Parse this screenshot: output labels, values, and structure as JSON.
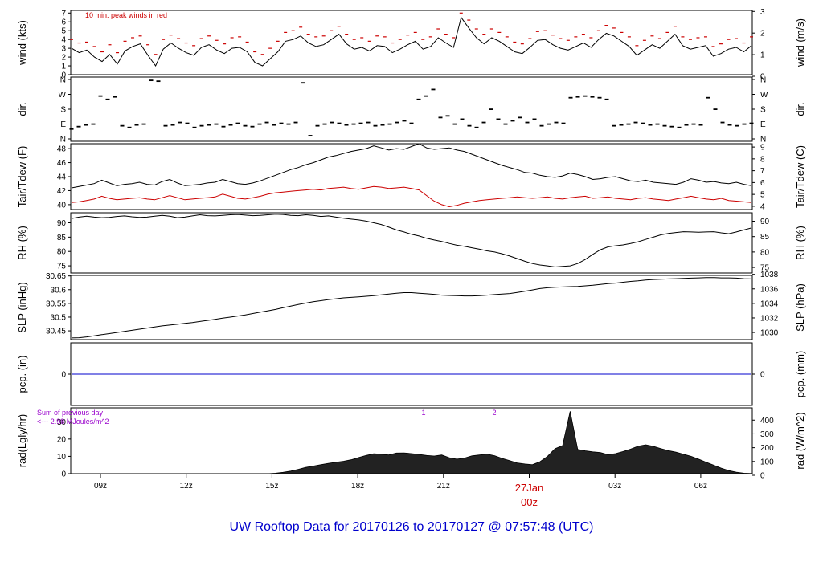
{
  "footer": {
    "title_prefix": "UW Rooftop Data for",
    "start": "20170126",
    "to_word": "to",
    "end": "20170127",
    "at_word": "@",
    "time": "07:57:48",
    "tz": "(UTC)"
  },
  "x_axis": {
    "ticks": [
      "09z",
      "12z",
      "15z",
      "18z",
      "21z",
      "27Jan",
      "03z",
      "06z"
    ],
    "date_marker": {
      "label": "27Jan",
      "sub": "00z",
      "color": "#cc0000"
    }
  },
  "chart_data": [
    {
      "type": "line",
      "title": "10 min. peak winds in red",
      "ylabel_left": "wind (kts)",
      "ylabel_right": "wind (m/s)",
      "left_ticks": [
        0,
        1,
        2,
        3,
        4,
        5,
        6,
        7
      ],
      "right_ticks": [
        0,
        1,
        2,
        3
      ],
      "ylim": [
        0,
        7.3
      ],
      "colors": {
        "series": "#000000",
        "peak": "#cc0000"
      },
      "series": [
        {
          "values": [
            3,
            2.5,
            2.8,
            2,
            1.5,
            2.3,
            1.2,
            2.7,
            3.2,
            3.5,
            2.2,
            1,
            2.9,
            3.6,
            3,
            2.5,
            2.2,
            3.1,
            3.4,
            2.8,
            2.4,
            3,
            3.1,
            2.6,
            1.4,
            1,
            1.8,
            2.6,
            3.8,
            4,
            4.4,
            3.6,
            3.2,
            3.4,
            4,
            4.6,
            3.5,
            2.9,
            3.1,
            2.7,
            3.3,
            3.2,
            2.5,
            2.9,
            3.4,
            3.8,
            2.9,
            3.2,
            4.2,
            3.6,
            3.1,
            6.5,
            5.3,
            4.2,
            3.5,
            4.2,
            3.8,
            3.2,
            2.6,
            2.4,
            3.1,
            3.9,
            4,
            3.4,
            3,
            2.8,
            3.2,
            3.6,
            3.1,
            4,
            4.7,
            4.4,
            3.8,
            3.2,
            2.2,
            2.8,
            3.4,
            3,
            3.8,
            4.6,
            3.3,
            2.9,
            3.1,
            3.3,
            2.1,
            2.4,
            2.9,
            3.1,
            2.6,
            3.3
          ]
        }
      ],
      "peak_values": [
        4,
        3.6,
        3.7,
        3.2,
        2.6,
        3.4,
        2.5,
        3.8,
        4.2,
        4.4,
        3.4,
        2.3,
        4,
        4.5,
        4.1,
        3.6,
        3.3,
        4.1,
        4.4,
        3.9,
        3.5,
        4.2,
        4.3,
        3.7,
        2.6,
        2.3,
        3,
        3.8,
        4.8,
        5,
        5.4,
        4.6,
        4.3,
        4.4,
        5,
        5.5,
        4.6,
        4,
        4.2,
        3.8,
        4.4,
        4.3,
        3.6,
        4,
        4.5,
        4.8,
        4,
        4.3,
        5.2,
        4.6,
        4.2,
        7,
        6.2,
        5.2,
        4.6,
        5.2,
        4.8,
        4.3,
        3.7,
        3.5,
        4.1,
        4.9,
        5,
        4.5,
        4.1,
        3.9,
        4.3,
        4.6,
        4.2,
        5,
        5.6,
        5.3,
        4.8,
        4.3,
        3.3,
        3.9,
        4.4,
        4.1,
        4.8,
        5.5,
        4.3,
        4,
        4.2,
        4.3,
        3.2,
        3.5,
        4,
        4.1,
        3.6,
        4.3
      ]
    },
    {
      "type": "scatter",
      "ylabel_left": "dir.",
      "ylabel_right": "dir.",
      "left_ticks": [
        "N",
        "E",
        "S",
        "W",
        "N"
      ],
      "right_ticks": [
        "N",
        "E",
        "S",
        "W",
        "N"
      ],
      "ylim": [
        0,
        360
      ],
      "series": [
        {
          "values": [
            60,
            75,
            85,
            90,
            260,
            240,
            255,
            80,
            70,
            85,
            90,
            355,
            350,
            80,
            85,
            100,
            95,
            70,
            80,
            85,
            90,
            75,
            85,
            95,
            80,
            75,
            90,
            100,
            85,
            95,
            90,
            100,
            340,
            20,
            80,
            90,
            100,
            95,
            85,
            90,
            95,
            100,
            80,
            85,
            90,
            100,
            110,
            95,
            240,
            260,
            300,
            130,
            140,
            90,
            120,
            80,
            70,
            100,
            180,
            120,
            90,
            110,
            130,
            100,
            120,
            80,
            90,
            100,
            95,
            250,
            255,
            260,
            255,
            250,
            240,
            80,
            85,
            90,
            100,
            95,
            85,
            90,
            80,
            75,
            70,
            85,
            90,
            85,
            250,
            180,
            100,
            85,
            80,
            90,
            95
          ]
        }
      ]
    },
    {
      "type": "line",
      "ylabel_left": "Tair/Tdew (F)",
      "ylabel_right": "Tair/Tdew (C)",
      "left_ticks": [
        40,
        42,
        44,
        46,
        48
      ],
      "right_ticks": [
        4,
        5,
        6,
        7,
        8,
        9
      ],
      "ylim": [
        39.3,
        48.7
      ],
      "colors": {
        "tair": "#000000",
        "tdew": "#cc0000"
      },
      "series": [
        {
          "values": [
            42.4,
            42.6,
            42.8,
            43,
            43.5,
            43.1,
            42.7,
            42.9,
            43,
            43.2,
            42.9,
            42.8,
            43.3,
            43.6,
            43.1,
            42.7,
            42.8,
            42.9,
            43.1,
            43.2,
            43.6,
            43.3,
            43,
            42.9,
            43.1,
            43.4,
            43.8,
            44.2,
            44.6,
            45,
            45.3,
            45.7,
            46,
            46.4,
            46.8,
            47,
            47.3,
            47.6,
            47.8,
            48,
            48.4,
            48.1,
            47.8,
            48,
            47.9,
            48.3,
            48.7,
            48.1,
            47.9,
            48,
            48.1,
            47.8,
            47.6,
            47.2,
            46.8,
            46.4,
            46,
            45.6,
            45.3,
            45,
            44.6,
            44.5,
            44.2,
            44,
            43.9,
            44.1,
            44.5,
            44.3,
            44,
            43.6,
            43.7,
            43.9,
            44,
            43.7,
            43.4,
            43.3,
            43.5,
            43.2,
            43.1,
            43,
            42.9,
            43.2,
            43.7,
            43.5,
            43.2,
            43.3,
            43.1,
            43,
            43.2,
            42.9,
            42.7
          ]
        },
        {
          "values": [
            40.3,
            40.4,
            40.6,
            40.8,
            41.2,
            40.9,
            40.7,
            40.8,
            40.9,
            41,
            40.8,
            40.7,
            41,
            41.3,
            41,
            40.7,
            40.8,
            40.9,
            41,
            41.1,
            41.5,
            41.2,
            40.9,
            40.8,
            41,
            41.2,
            41.5,
            41.7,
            41.8,
            41.9,
            42,
            42.1,
            42.2,
            42.1,
            42.3,
            42.4,
            42.5,
            42.3,
            42.2,
            42.4,
            42.6,
            42.5,
            42.3,
            42.4,
            42.5,
            42.3,
            42.1,
            41.3,
            40.5,
            40,
            39.7,
            39.9,
            40.2,
            40.4,
            40.6,
            40.7,
            40.8,
            40.9,
            41,
            41.1,
            41,
            40.9,
            41,
            41.1,
            40.9,
            40.8,
            41,
            41.1,
            41.2,
            40.9,
            41,
            41.1,
            40.9,
            40.8,
            40.7,
            40.9,
            41,
            40.8,
            40.7,
            40.6,
            40.8,
            41,
            41.2,
            41,
            40.8,
            40.7,
            40.9,
            40.6,
            40.5,
            40.4,
            40.3
          ]
        }
      ]
    },
    {
      "type": "line",
      "ylabel_left": "RH (%)",
      "ylabel_right": "RH (%)",
      "left_ticks": [
        75,
        80,
        85,
        90
      ],
      "right_ticks": [
        75,
        80,
        85,
        90
      ],
      "ylim": [
        72.5,
        93.5
      ],
      "series": [
        {
          "values": [
            91.5,
            92,
            92.3,
            92,
            91.8,
            91.9,
            92.2,
            92.4,
            92.1,
            91.9,
            92,
            92.3,
            92.6,
            92.3,
            91.8,
            92,
            92.4,
            92.8,
            92.5,
            92.4,
            92.6,
            92.8,
            92.9,
            92.7,
            92.5,
            92.6,
            92.8,
            93,
            92.9,
            92.6,
            92.5,
            92.8,
            92.6,
            92.2,
            92.4,
            92,
            91.6,
            91.3,
            91,
            90.6,
            90,
            89.4,
            88.5,
            87.5,
            86.8,
            86,
            85.4,
            84.6,
            84,
            83.5,
            82.8,
            82.2,
            81.8,
            81.3,
            80.8,
            80.2,
            79.8,
            79.2,
            78.4,
            77.5,
            76.6,
            75.8,
            75.3,
            75,
            74.6,
            74.8,
            75,
            75.8,
            77.2,
            79,
            80.6,
            81.6,
            82,
            82.3,
            82.8,
            83.4,
            84.2,
            85,
            85.8,
            86.3,
            86.6,
            86.9,
            86.8,
            86.7,
            86.8,
            86.9,
            86.5,
            86.2,
            86.8,
            87.5,
            88.2
          ]
        }
      ]
    },
    {
      "type": "line",
      "ylabel_left": "SLP (inHg)",
      "ylabel_right": "SLP (hPa)",
      "left_ticks": [
        30.45,
        30.5,
        30.55,
        30.6,
        30.65
      ],
      "right_ticks": [
        1030,
        1032,
        1034,
        1036,
        1038
      ],
      "ylim": [
        30.418,
        30.652
      ],
      "series": [
        {
          "values": [
            30.424,
            30.425,
            30.428,
            30.432,
            30.436,
            30.44,
            30.444,
            30.448,
            30.452,
            30.456,
            30.46,
            30.464,
            30.468,
            30.471,
            30.474,
            30.477,
            30.48,
            30.484,
            30.488,
            30.492,
            30.496,
            30.5,
            30.504,
            30.508,
            30.513,
            30.518,
            30.523,
            30.528,
            30.534,
            30.54,
            30.546,
            30.551,
            30.556,
            30.56,
            30.564,
            30.567,
            30.57,
            30.572,
            30.574,
            30.576,
            30.578,
            30.581,
            30.584,
            30.587,
            30.589,
            30.589,
            30.587,
            30.585,
            30.583,
            30.58,
            30.579,
            30.578,
            30.577,
            30.577,
            30.578,
            30.58,
            30.582,
            30.584,
            30.586,
            30.59,
            30.594,
            30.599,
            30.604,
            30.607,
            30.609,
            30.61,
            30.611,
            30.612,
            30.614,
            30.616,
            30.619,
            30.622,
            30.624,
            30.627,
            30.63,
            30.632,
            30.635,
            30.637,
            30.638,
            30.639,
            30.64,
            30.641,
            30.642,
            30.643,
            30.644,
            30.644,
            30.643,
            30.643,
            30.642,
            30.64,
            30.639
          ]
        }
      ]
    },
    {
      "type": "line",
      "ylabel_left": "pcp. (in)",
      "ylabel_right": "pcp. (mm)",
      "left_ticks": [
        0
      ],
      "right_ticks": [
        0
      ],
      "ylim": [
        -1,
        1
      ],
      "colors": {
        "series": "#0000cc"
      },
      "series": [
        {
          "values": [
            0,
            0
          ]
        }
      ]
    },
    {
      "type": "area",
      "ylabel_left": "rad(Lgly/hr)",
      "ylabel_right": "rad (W/m^2)",
      "left_ticks": [
        0,
        10,
        20,
        30
      ],
      "right_ticks": [
        0,
        100,
        200,
        300,
        400
      ],
      "ylim": [
        0,
        38
      ],
      "annotations": [
        "Sum of previous day",
        "<--- 2.98 MJoules/m^2",
        "1",
        "2"
      ],
      "colors": {
        "series": "#000000",
        "annotation": "#9900cc"
      },
      "series": [
        {
          "values": [
            0,
            0,
            0,
            0,
            0,
            0,
            0,
            0,
            0,
            0,
            0,
            0,
            0,
            0,
            0,
            0,
            0,
            0,
            0,
            0,
            0,
            0,
            0,
            0,
            0,
            0,
            0,
            0.3,
            0.8,
            1.5,
            2.5,
            3.6,
            4.4,
            5.2,
            6,
            6.6,
            7.2,
            8,
            9.3,
            10.5,
            11.5,
            11.2,
            10.8,
            11.9,
            12,
            11.6,
            11.1,
            10.5,
            10.2,
            10.8,
            9.2,
            8.4,
            9,
            10.3,
            10.8,
            11.3,
            10.4,
            8.8,
            7.5,
            6.2,
            5.6,
            5.2,
            6.9,
            10,
            14.4,
            16.2,
            36,
            14,
            13.2,
            12.6,
            12.2,
            11,
            11.6,
            12.8,
            14.2,
            15.9,
            16.7,
            15.8,
            14.5,
            13.3,
            12.4,
            11.2,
            10,
            8.4,
            6.6,
            4.9,
            3.2,
            1.8,
            0.9,
            0.3,
            0.1
          ]
        }
      ]
    }
  ]
}
